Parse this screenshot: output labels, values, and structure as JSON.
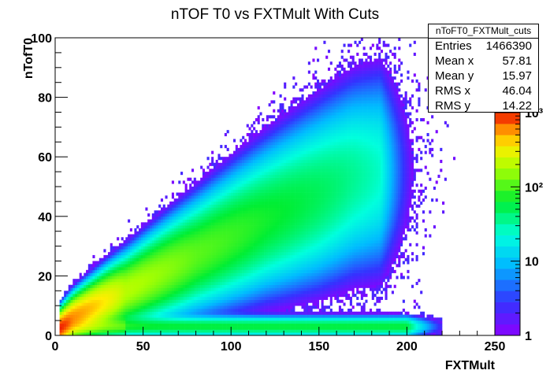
{
  "chart_data": {
    "type": "heatmap",
    "title": "nTOF T0 vs FXTMult With Cuts",
    "xlabel": "FXTMult",
    "ylabel": "nTofT0",
    "xlim": [
      0,
      250
    ],
    "ylim": [
      0,
      100
    ],
    "x_ticks": [
      "0",
      "50",
      "100",
      "150",
      "200",
      "250"
    ],
    "y_ticks": [
      "0",
      "20",
      "40",
      "60",
      "80",
      "100"
    ],
    "z_scale": "log",
    "z_range": [
      1,
      1000
    ],
    "z_ticks": [
      "1",
      "10",
      "10²",
      "10³"
    ],
    "grid": false,
    "bands": [
      {
        "description": "main diagonal band",
        "x": [
          2,
          10,
          40,
          80,
          120,
          150,
          170,
          185
        ],
        "y_center": [
          2,
          6,
          15,
          27,
          39,
          47,
          53,
          55
        ],
        "peak_counts": [
          900,
          600,
          200,
          110,
          70,
          50,
          35,
          25
        ]
      },
      {
        "description": "lower horizontal band",
        "x_range": [
          2,
          200
        ],
        "y_center": 3,
        "peak_counts": 60
      }
    ],
    "stats": {
      "name": "nToFT0_FXTMult_cuts",
      "entries": {
        "label": "Entries",
        "value": "1466390"
      },
      "mean_x": {
        "label": "Mean x",
        "value": "57.81"
      },
      "mean_y": {
        "label": "Mean y",
        "value": "15.97"
      },
      "rms_x": {
        "label": "RMS x",
        "value": "46.04"
      },
      "rms_y": {
        "label": "RMS y",
        "value": "14.22"
      }
    }
  }
}
